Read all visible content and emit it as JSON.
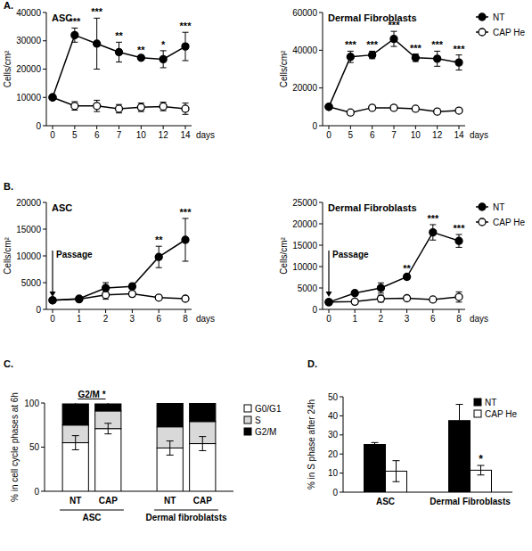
{
  "chart_data": [
    {
      "type": "line",
      "title": "ASC",
      "annotations": [
        {
          "text": "A.",
          "kind": "panel"
        }
      ],
      "y_label": "Cells/cm²",
      "x_label": "days",
      "categories": [
        "0",
        "5",
        "6",
        "7",
        "10",
        "12",
        "14"
      ],
      "ylim": [
        0,
        40000
      ],
      "yticks": [
        0,
        10000,
        20000,
        30000,
        40000
      ],
      "legend": "none",
      "series": [
        {
          "name": "NT",
          "color": "#000000",
          "marker": "filled",
          "values": [
            10000,
            32000,
            29000,
            26000,
            24000,
            23500,
            28000
          ],
          "errors": [
            0,
            2500,
            9000,
            3500,
            500,
            3000,
            5000
          ],
          "significance": [
            null,
            "***",
            "***",
            "**",
            "**",
            "*",
            "***"
          ]
        },
        {
          "name": "CAP He",
          "color": "#000000",
          "marker": "open",
          "values": [
            10000,
            7000,
            7000,
            6000,
            6500,
            6800,
            6000
          ],
          "errors": [
            0,
            1500,
            2000,
            1500,
            1500,
            1500,
            2000
          ]
        }
      ]
    },
    {
      "type": "line",
      "title": "Dermal Fibroblasts",
      "annotations": [],
      "y_label": "Cells/cm²",
      "x_label": "days",
      "categories": [
        "0",
        "5",
        "6",
        "7",
        "10",
        "12",
        "14"
      ],
      "ylim": [
        0,
        60000
      ],
      "yticks": [
        0,
        20000,
        40000,
        60000
      ],
      "legend": "right",
      "series": [
        {
          "name": "NT",
          "color": "#000000",
          "marker": "filled",
          "values": [
            10000,
            36500,
            37500,
            46000,
            36000,
            35500,
            33500
          ],
          "errors": [
            0,
            3000,
            2000,
            4000,
            2000,
            4000,
            4000
          ],
          "significance": [
            null,
            "***",
            "***",
            "***",
            "***",
            "***",
            "***"
          ]
        },
        {
          "name": "CAP He",
          "color": "#000000",
          "marker": "open",
          "values": [
            10000,
            7000,
            9500,
            9500,
            9000,
            7500,
            8000
          ],
          "errors": [
            0,
            1000,
            1000,
            1000,
            1000,
            500,
            1000
          ]
        }
      ]
    },
    {
      "type": "line",
      "title": "ASC",
      "annotations": [
        {
          "text": "B.",
          "kind": "panel"
        },
        {
          "text": "Passage",
          "kind": "arrow",
          "x": "0"
        }
      ],
      "y_label": "Cells/cm²",
      "x_label": "days",
      "categories": [
        "0",
        "1",
        "2",
        "3",
        "6",
        "8"
      ],
      "ylim": [
        0,
        20000
      ],
      "yticks": [
        0,
        5000,
        10000,
        15000,
        20000
      ],
      "legend": "none",
      "series": [
        {
          "name": "NT",
          "color": "#000000",
          "marker": "filled",
          "values": [
            1700,
            2000,
            4000,
            4300,
            9800,
            13000
          ],
          "errors": [
            0,
            300,
            1000,
            500,
            2000,
            4000
          ],
          "significance": [
            null,
            null,
            null,
            null,
            "**",
            "***"
          ]
        },
        {
          "name": "CAP He",
          "color": "#000000",
          "marker": "open",
          "values": [
            1700,
            1900,
            2700,
            2900,
            2200,
            2000
          ],
          "errors": [
            0,
            300,
            800,
            500,
            300,
            300
          ]
        }
      ]
    },
    {
      "type": "line",
      "title": "Dermal Fibroblasts",
      "annotations": [
        {
          "text": "Passage",
          "kind": "arrow",
          "x": "0"
        }
      ],
      "y_label": "Cells/cm²",
      "x_label": "days",
      "categories": [
        "0",
        "1",
        "2",
        "3",
        "6",
        "8"
      ],
      "ylim": [
        0,
        25000
      ],
      "yticks": [
        0,
        5000,
        10000,
        15000,
        20000,
        25000
      ],
      "legend": "right",
      "series": [
        {
          "name": "NT",
          "color": "#000000",
          "marker": "filled",
          "values": [
            1700,
            3800,
            5000,
            7600,
            18000,
            16000
          ],
          "errors": [
            0,
            300,
            1200,
            500,
            1800,
            1500
          ],
          "significance": [
            null,
            null,
            null,
            "**",
            "***",
            "***"
          ]
        },
        {
          "name": "CAP He",
          "color": "#000000",
          "marker": "open",
          "values": [
            1700,
            1800,
            2500,
            2600,
            2300,
            2900
          ],
          "errors": [
            0,
            300,
            800,
            500,
            400,
            1200
          ]
        }
      ]
    },
    {
      "type": "bar",
      "stacked": true,
      "annotations": [
        {
          "text": "C.",
          "kind": "panel"
        },
        {
          "text": "G2/M *",
          "kind": "bracket",
          "group": 0
        }
      ],
      "y_label": "% in cell cycle phases at 6h",
      "categories": [
        "NT",
        "CAP",
        "NT",
        "CAP"
      ],
      "groups": [
        {
          "label": "ASC",
          "categories": [
            0,
            1
          ]
        },
        {
          "label": "Dermal fibroblatsts",
          "categories": [
            2,
            3
          ]
        }
      ],
      "ylim": [
        0,
        100
      ],
      "yticks": [
        0,
        50,
        100
      ],
      "legend": "right",
      "series": [
        {
          "name": "G0/G1",
          "color": "#ffffff",
          "values": [
            55,
            71,
            49,
            54
          ],
          "errors": [
            8,
            6,
            8,
            8
          ]
        },
        {
          "name": "S",
          "color": "#d9d9d9",
          "values": [
            20,
            20,
            24,
            25
          ]
        },
        {
          "name": "G2/M",
          "color": "#000000",
          "values": [
            24,
            8,
            27,
            21
          ],
          "errors": [
            5,
            4,
            6,
            8
          ]
        }
      ]
    },
    {
      "type": "bar",
      "annotations": [
        {
          "text": "D.",
          "kind": "panel"
        }
      ],
      "y_label": "% in S phase after 24h",
      "categories": [
        "ASC",
        "Dermal Fibroblasts"
      ],
      "ylim": [
        0,
        50
      ],
      "yticks": [
        0,
        10,
        20,
        30,
        40,
        50
      ],
      "legend": "top-right",
      "series": [
        {
          "name": "NT",
          "color": "#000000",
          "values": [
            25,
            37.5
          ],
          "errors": [
            1,
            8.5
          ]
        },
        {
          "name": "CAP He",
          "color": "#ffffff",
          "values": [
            11,
            11.5
          ],
          "errors": [
            5.5,
            2.5
          ],
          "significance": [
            null,
            "*"
          ]
        }
      ]
    }
  ]
}
